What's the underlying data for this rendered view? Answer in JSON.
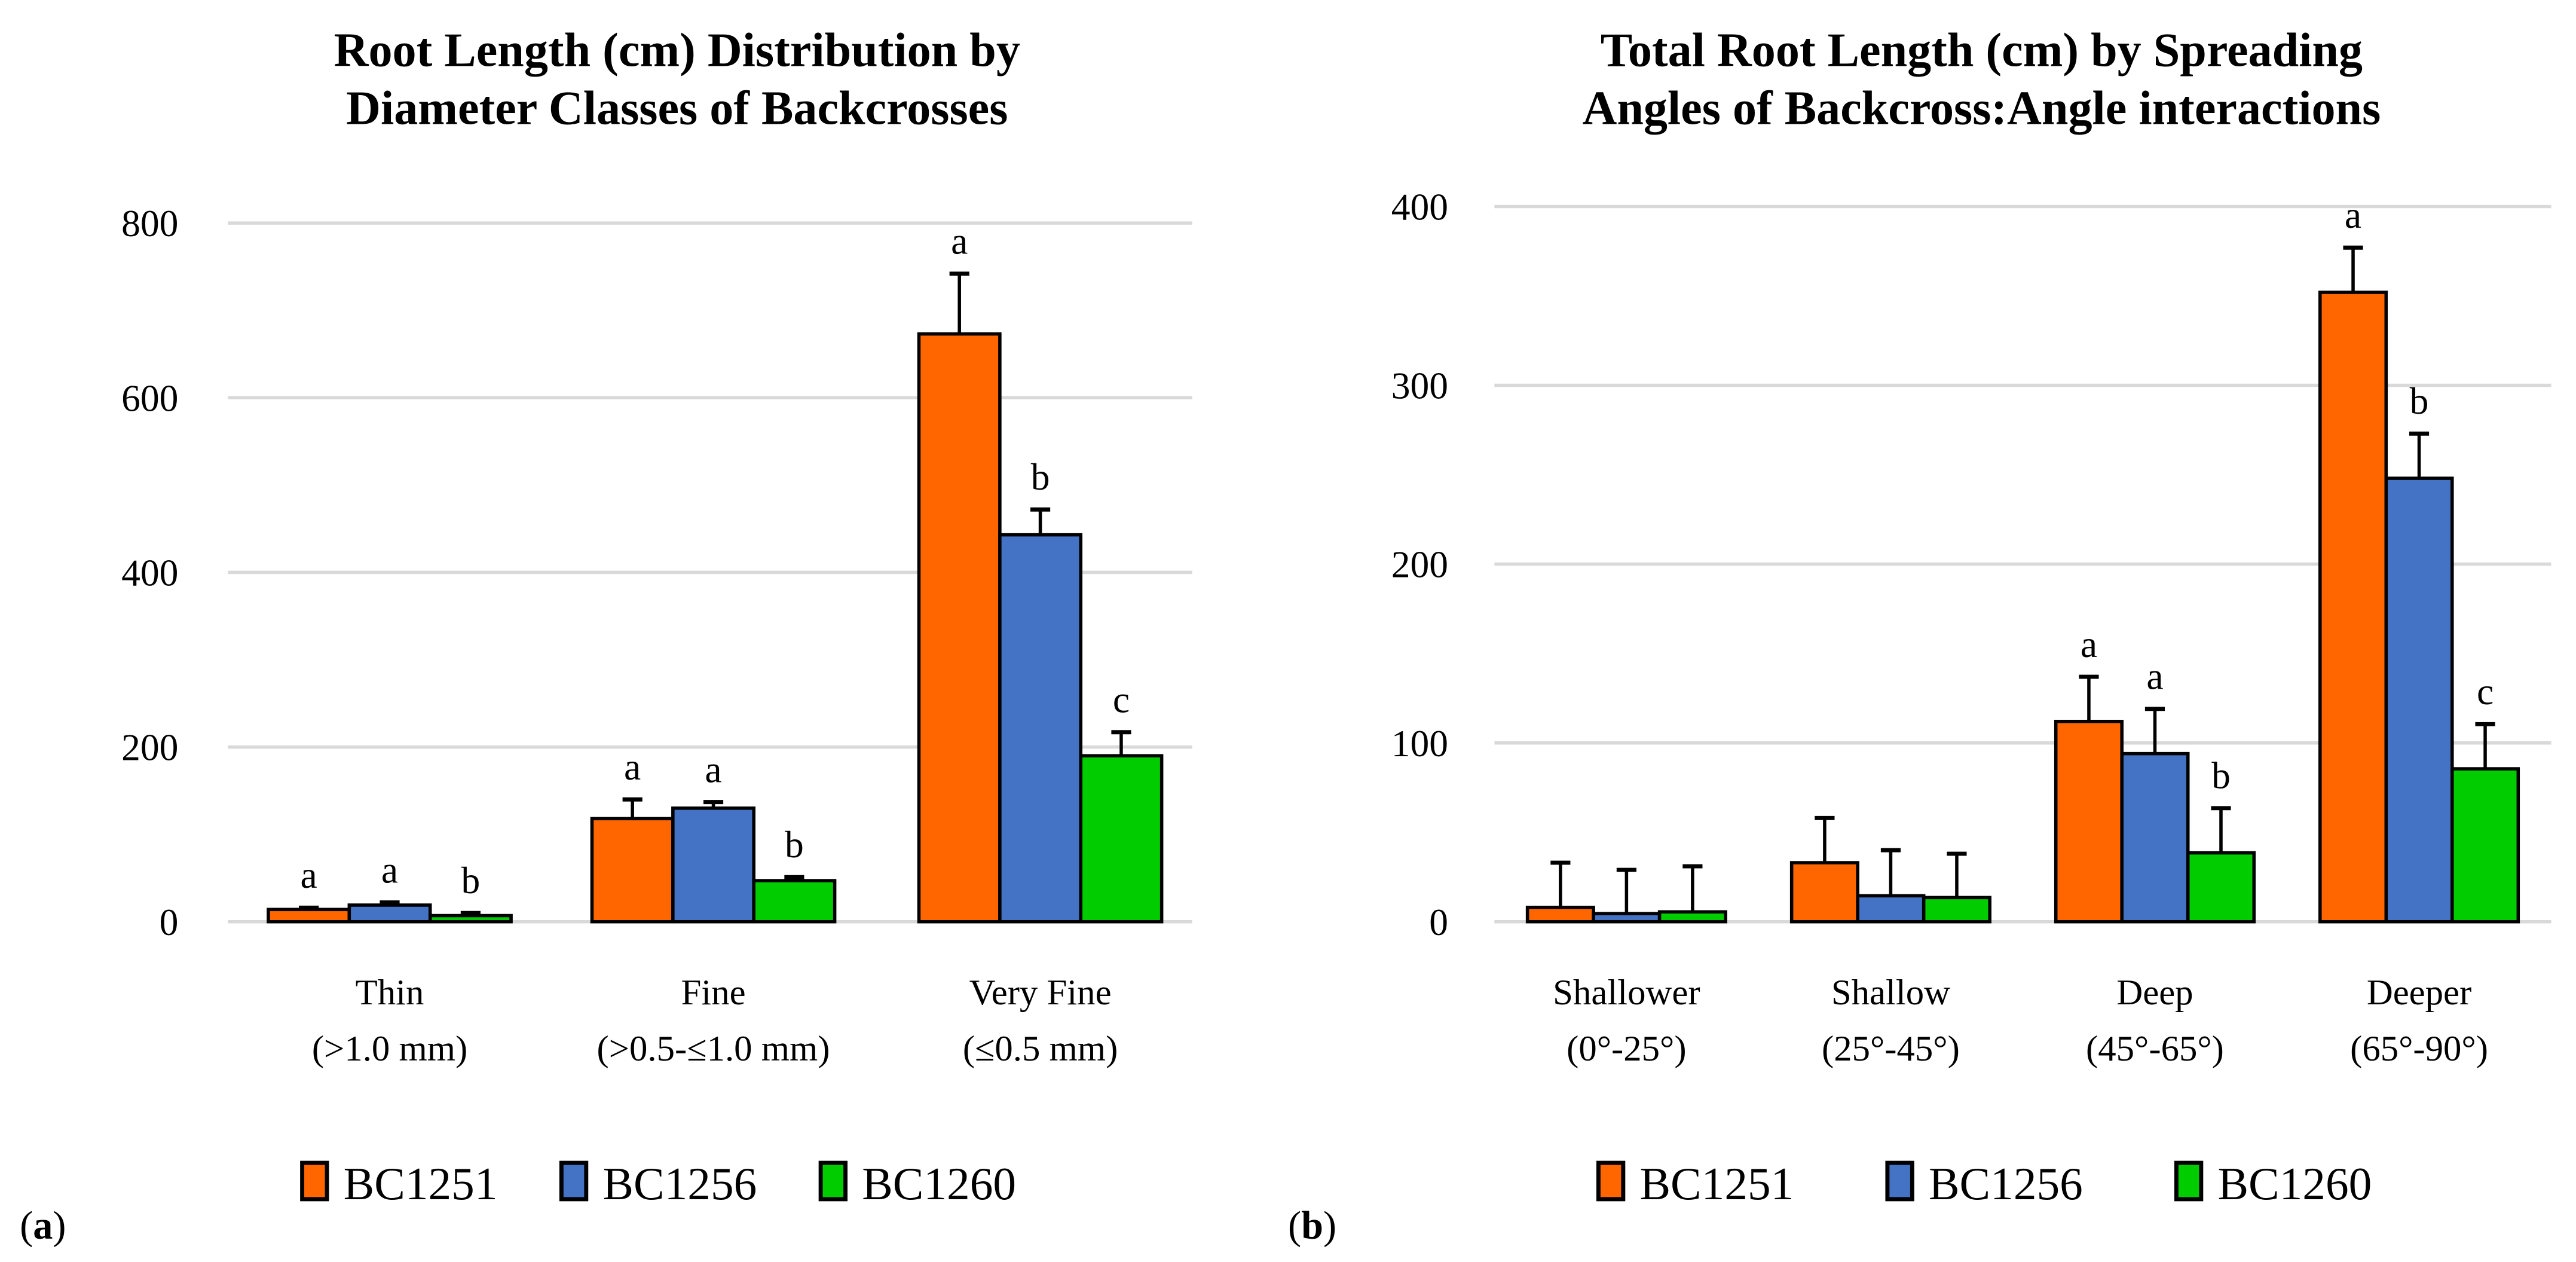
{
  "chart_data": [
    {
      "type": "bar",
      "panel_label": "a",
      "title_lines": [
        "Root Length (cm) Distribution by",
        "Diameter Classes of Backcrosses"
      ],
      "xlabel": "",
      "ylabel": "",
      "ylim": [
        0,
        800
      ],
      "yticks": [
        "0",
        "200",
        "400",
        "600",
        "800"
      ],
      "ytick_values": [
        0,
        200,
        400,
        600,
        800
      ],
      "grid": true,
      "legend_position": "bottom",
      "categories": [
        {
          "name": "Thin",
          "sub": "(>1.0 mm)"
        },
        {
          "name": "Fine",
          "sub": "(>0.5-≤1.0 mm)"
        },
        {
          "name": "Very Fine",
          "sub": "(≤0.5 mm)"
        }
      ],
      "series": [
        {
          "name": "BC1251",
          "color": "#FF6600",
          "values": [
            14,
            118,
            673
          ],
          "error_upper": [
            16,
            140,
            742
          ],
          "letters": [
            "a",
            "a",
            "a"
          ]
        },
        {
          "name": "BC1256",
          "color": "#4472C4",
          "values": [
            19,
            130,
            443
          ],
          "error_upper": [
            22,
            137,
            472
          ],
          "letters": [
            "a",
            "a",
            "b"
          ]
        },
        {
          "name": "BC1260",
          "color": "#00CC00",
          "values": [
            7,
            47,
            190
          ],
          "error_upper": [
            10,
            51,
            217
          ],
          "letters": [
            "b",
            "b",
            "c"
          ]
        }
      ]
    },
    {
      "type": "bar",
      "panel_label": "b",
      "title_lines": [
        "Total Root Length (cm) by Spreading",
        "Angles of Backcross:Angle interactions"
      ],
      "xlabel": "",
      "ylabel": "",
      "ylim": [
        0,
        400
      ],
      "yticks": [
        "0",
        "100",
        "200",
        "300",
        "400"
      ],
      "ytick_values": [
        0,
        100,
        200,
        300,
        400
      ],
      "grid": true,
      "legend_position": "bottom",
      "categories": [
        {
          "name": "Shallower",
          "sub": "(0°-25°)"
        },
        {
          "name": "Shallow",
          "sub": "(25°-45°)"
        },
        {
          "name": "Deep",
          "sub": "(45°-65°)"
        },
        {
          "name": "Deeper",
          "sub": "(65°-90°)"
        }
      ],
      "series": [
        {
          "name": "BC1251",
          "color": "#FF6600",
          "values": [
            8,
            33,
            112,
            352
          ],
          "error_upper": [
            33,
            58,
            137,
            377
          ],
          "letters": [
            "",
            "",
            "a",
            "a"
          ]
        },
        {
          "name": "BC1256",
          "color": "#4472C4",
          "values": [
            4.5,
            14.5,
            94,
            248
          ],
          "error_upper": [
            29,
            40,
            119,
            273
          ],
          "letters": [
            "",
            "",
            "a",
            "b"
          ]
        },
        {
          "name": "BC1260",
          "color": "#00CC00",
          "values": [
            5.5,
            13.5,
            38.5,
            85.5
          ],
          "error_upper": [
            31,
            38,
            63.5,
            110.5
          ],
          "letters": [
            "",
            "",
            "b",
            "c"
          ]
        }
      ]
    }
  ]
}
